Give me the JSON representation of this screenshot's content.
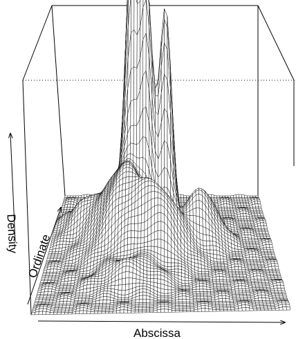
{
  "chart_data": {
    "type": "surface",
    "title": "",
    "xlabel": "Abscissa",
    "ylabel": "Ordinate",
    "zlabel": "Density",
    "axis_ticks": "none",
    "box": true,
    "mesh": "wireframe",
    "surface_color": "#ffffff",
    "line_color": "#000000",
    "reference_line": "dotted",
    "peaks": [
      {
        "name": "tallest-peak",
        "x": 0.36,
        "y": 0.78,
        "height": 1.0
      },
      {
        "name": "second-peak",
        "x": 0.43,
        "y": 0.74,
        "height": 0.8
      },
      {
        "name": "third-peak",
        "x": 0.52,
        "y": 0.76,
        "height": 0.76
      },
      {
        "name": "ridge",
        "x": 0.33,
        "y": 0.58,
        "height": 0.27
      },
      {
        "name": "right-hump",
        "x": 0.68,
        "y": 0.62,
        "height": 0.18
      },
      {
        "name": "center-hump",
        "x": 0.5,
        "y": 0.48,
        "height": 0.22
      },
      {
        "name": "left-hump",
        "x": 0.15,
        "y": 0.7,
        "height": 0.1
      },
      {
        "name": "front-bump",
        "x": 0.38,
        "y": 0.25,
        "height": 0.08
      }
    ]
  }
}
